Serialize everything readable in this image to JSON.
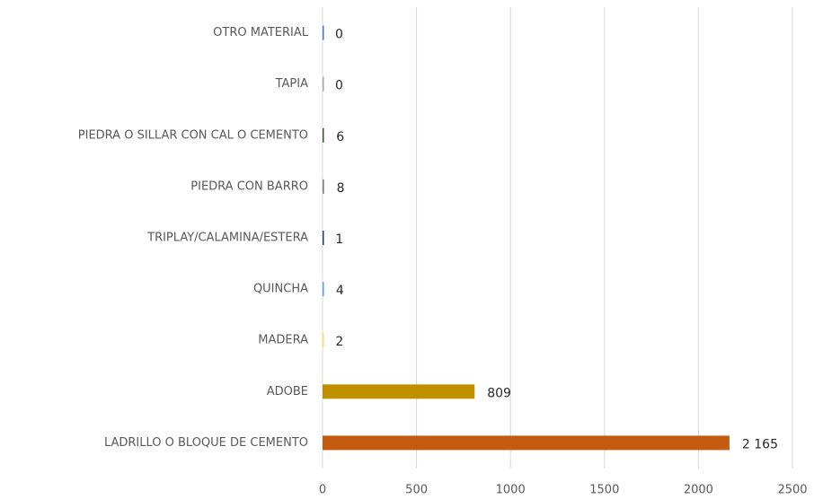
{
  "chart_data": {
    "type": "barh",
    "categories": [
      "OTRO MATERIAL",
      "TAPIA",
      "PIEDRA O SILLAR CON CAL O CEMENTO",
      "PIEDRA CON BARRO",
      "TRIPLAY/CALAMINA/ESTERA",
      "QUINCHA",
      "MADERA",
      "ADOBE",
      "LADRILLO O BLOQUE DE CEMENTO"
    ],
    "values": [
      0,
      0,
      6,
      8,
      1,
      4,
      2,
      809,
      2165
    ],
    "value_labels": [
      "0",
      "0",
      "6",
      "8",
      "1",
      "4",
      "2",
      "809",
      "2 165"
    ],
    "colors": [
      "#4472c4",
      "#a5a5a5",
      "#375623",
      "#7f7f7f",
      "#203864",
      "#5b9bd5",
      "#ffd966",
      "#bf9000",
      "#c55a11"
    ],
    "xlim": [
      0,
      2500
    ],
    "xticks": [
      0,
      500,
      1000,
      1500,
      2000,
      2500
    ],
    "grid": true
  }
}
